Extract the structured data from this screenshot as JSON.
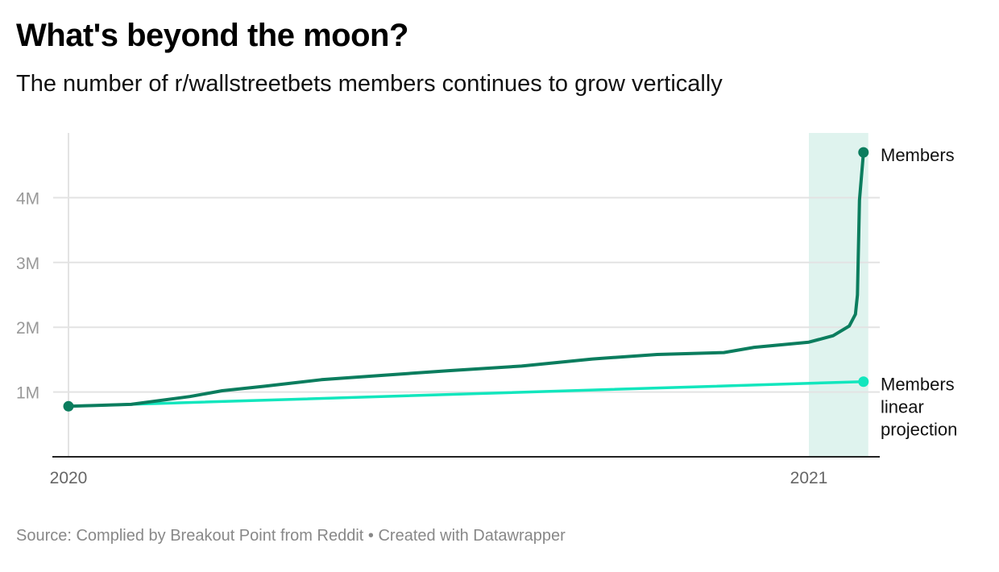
{
  "header": {
    "title": "What's beyond the moon?",
    "subtitle": "The number of r/wallstreetbets members continues to grow vertically"
  },
  "footer": {
    "source": "Source: Complied by Breakout Point from Reddit",
    "separator": "•",
    "credit": "Created with Datawrapper"
  },
  "chart_data": {
    "type": "line",
    "title": "What's beyond the moon?",
    "subtitle": "The number of r/wallstreetbets members continues to grow vertically",
    "xlabel": "",
    "ylabel": "",
    "x_ticks": [
      "2020",
      "2021"
    ],
    "y_ticks": [
      "1M",
      "2M",
      "3M",
      "4M"
    ],
    "ylim": [
      0,
      5000000
    ],
    "xlim": [
      "2020-01-01",
      "2021-01-28"
    ],
    "grid": "horizontal",
    "legend": "direct labels at right",
    "highlight_range": [
      "2021-01-01",
      "2021-01-28"
    ],
    "colors": {
      "members": "#0b7d5e",
      "projection": "#12e6bd",
      "highlight": "#dff3ee"
    },
    "series": [
      {
        "name": "Members",
        "points": [
          [
            "2020-01-01",
            780000
          ],
          [
            "2020-02-01",
            810000
          ],
          [
            "2020-03-01",
            930000
          ],
          [
            "2020-03-17",
            1020000
          ],
          [
            "2020-04-07",
            1090000
          ],
          [
            "2020-05-05",
            1190000
          ],
          [
            "2020-06-05",
            1260000
          ],
          [
            "2020-07-07",
            1330000
          ],
          [
            "2020-08-12",
            1400000
          ],
          [
            "2020-09-16",
            1510000
          ],
          [
            "2020-10-18",
            1580000
          ],
          [
            "2020-11-20",
            1610000
          ],
          [
            "2020-12-05",
            1690000
          ],
          [
            "2021-01-01",
            1770000
          ],
          [
            "2021-01-13",
            1870000
          ],
          [
            "2021-01-21",
            2020000
          ],
          [
            "2021-01-24",
            2200000
          ],
          [
            "2021-01-25",
            2500000
          ],
          [
            "2021-01-26",
            3960000
          ],
          [
            "2021-01-28",
            4700000
          ]
        ]
      },
      {
        "name": "Members linear projection",
        "label_lines": [
          "Members",
          "linear",
          "projection"
        ],
        "points": [
          [
            "2020-01-01",
            780000
          ],
          [
            "2021-01-28",
            1160000
          ]
        ]
      }
    ]
  }
}
